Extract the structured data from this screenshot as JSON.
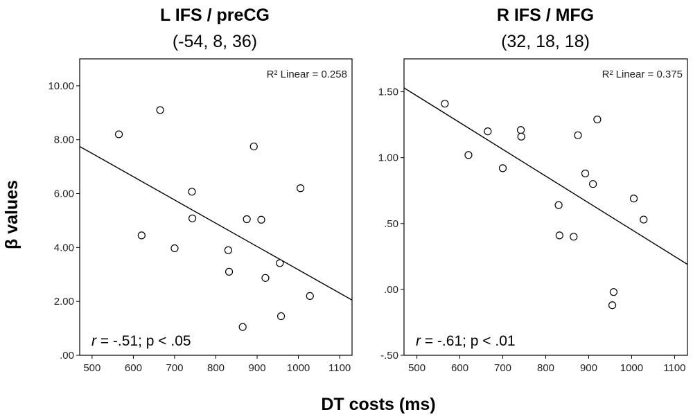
{
  "figure": {
    "ylabel": "β values",
    "xlabel": "DT costs (ms)"
  },
  "chart_data": [
    {
      "type": "scatter",
      "title": "L IFS / preCG",
      "subtitle": "(-54, 8, 36)",
      "xlabel": "DT costs (ms)",
      "ylabel": "β values",
      "xlim": [
        470,
        1130
      ],
      "ylim": [
        0.0,
        11.0
      ],
      "xticks": [
        500,
        600,
        700,
        800,
        900,
        1000,
        1100
      ],
      "xtick_labels": [
        "500",
        "600",
        "700",
        "800",
        "900",
        "1000",
        "1100"
      ],
      "yticks": [
        0,
        2,
        4,
        6,
        8,
        10
      ],
      "ytick_labels": [
        ".00",
        "2.00",
        "4.00",
        "6.00",
        "8.00",
        "10.00"
      ],
      "points": [
        {
          "x": 565,
          "y": 8.2
        },
        {
          "x": 620,
          "y": 4.45
        },
        {
          "x": 665,
          "y": 9.1
        },
        {
          "x": 700,
          "y": 3.97
        },
        {
          "x": 742,
          "y": 6.07
        },
        {
          "x": 743,
          "y": 5.08
        },
        {
          "x": 830,
          "y": 3.9
        },
        {
          "x": 832,
          "y": 3.1
        },
        {
          "x": 865,
          "y": 1.05
        },
        {
          "x": 875,
          "y": 5.05
        },
        {
          "x": 892,
          "y": 7.75
        },
        {
          "x": 910,
          "y": 5.03
        },
        {
          "x": 920,
          "y": 2.87
        },
        {
          "x": 955,
          "y": 3.42
        },
        {
          "x": 958,
          "y": 1.45
        },
        {
          "x": 1005,
          "y": 6.2
        },
        {
          "x": 1028,
          "y": 2.2
        }
      ],
      "fit_line": {
        "x": [
          470,
          1130
        ],
        "y": [
          7.75,
          2.05
        ]
      },
      "r2_label": "R² Linear = 0.258",
      "stat_r": "r",
      "stat_rest": " = -.51; p < .05"
    },
    {
      "type": "scatter",
      "title": "R IFS / MFG",
      "subtitle": "(32, 18, 18)",
      "xlabel": "DT costs (ms)",
      "ylabel": "β values",
      "xlim": [
        470,
        1130
      ],
      "ylim": [
        -0.5,
        1.75
      ],
      "xticks": [
        500,
        600,
        700,
        800,
        900,
        1000,
        1100
      ],
      "xtick_labels": [
        "500",
        "600",
        "700",
        "800",
        "900",
        "1000",
        "1100"
      ],
      "yticks": [
        -0.5,
        0,
        0.5,
        1.0,
        1.5
      ],
      "ytick_labels": [
        "-.50",
        ".00",
        ".50",
        "1.00",
        "1.50"
      ],
      "points": [
        {
          "x": 565,
          "y": 1.41
        },
        {
          "x": 620,
          "y": 1.02
        },
        {
          "x": 665,
          "y": 1.2
        },
        {
          "x": 700,
          "y": 0.92
        },
        {
          "x": 742,
          "y": 1.21
        },
        {
          "x": 743,
          "y": 1.16
        },
        {
          "x": 830,
          "y": 0.64
        },
        {
          "x": 832,
          "y": 0.41
        },
        {
          "x": 865,
          "y": 0.4
        },
        {
          "x": 875,
          "y": 1.17
        },
        {
          "x": 892,
          "y": 0.88
        },
        {
          "x": 910,
          "y": 0.8
        },
        {
          "x": 920,
          "y": 1.29
        },
        {
          "x": 955,
          "y": -0.12
        },
        {
          "x": 958,
          "y": -0.02
        },
        {
          "x": 1005,
          "y": 0.69
        },
        {
          "x": 1028,
          "y": 0.53
        }
      ],
      "fit_line": {
        "x": [
          470,
          1130
        ],
        "y": [
          1.53,
          0.19
        ]
      },
      "r2_label": "R² Linear = 0.375",
      "stat_r": "r",
      "stat_rest": " = -.61; p < .01"
    }
  ]
}
